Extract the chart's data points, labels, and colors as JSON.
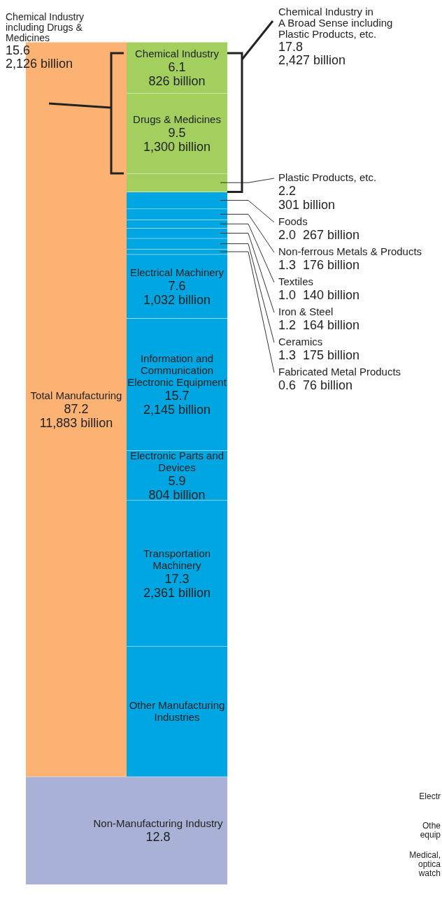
{
  "chart_data": {
    "type": "bar",
    "stacked": true,
    "categories": [
      null,
      null
    ],
    "series": [
      {
        "name": "Non-Manufacturing Industry",
        "color": "#a9b1d6",
        "values": [
          12.8,
          12.8
        ],
        "value_labels": [
          null,
          "12.8"
        ]
      },
      {
        "name": "Total Manufacturing",
        "color": "#fbb273",
        "values": [
          87.2,
          null
        ],
        "value_labels": [
          "87.2",
          null
        ]
      },
      {
        "name": "Other Manufacturing Industries",
        "color": "#00a6e2",
        "values": [
          null,
          15.5
        ],
        "value_labels": [
          null,
          null
        ]
      },
      {
        "name": "Transportation Machinery",
        "color": "#00a6e2",
        "values": [
          null,
          17.3
        ],
        "value_labels": [
          null,
          "17.3"
        ]
      },
      {
        "name": "Electronic Parts and Devices",
        "color": "#00a6e2",
        "values": [
          null,
          5.9
        ],
        "value_labels": [
          null,
          "5.9"
        ]
      },
      {
        "name": "Information and Communication Electronic Equipment",
        "color": "#00a6e2",
        "values": [
          null,
          15.7
        ],
        "value_labels": [
          null,
          "15.7"
        ]
      },
      {
        "name": "Electrical Machinery",
        "color": "#00a6e2",
        "values": [
          null,
          7.6
        ],
        "value_labels": [
          null,
          "7.6"
        ]
      },
      {
        "name": "Fabricated Metal Products",
        "color": "#00a6e2",
        "values": [
          null,
          0.6
        ],
        "value_labels": [
          null,
          "0.6"
        ]
      },
      {
        "name": "Ceramics",
        "color": "#00a6e2",
        "values": [
          null,
          1.3
        ],
        "value_labels": [
          null,
          "1.3"
        ]
      },
      {
        "name": "Iron & Steel",
        "color": "#00a6e2",
        "values": [
          null,
          1.2
        ],
        "value_labels": [
          null,
          "1.2"
        ]
      },
      {
        "name": "Textiles",
        "color": "#00a6e2",
        "values": [
          null,
          1.0
        ],
        "value_labels": [
          null,
          "1.0"
        ]
      },
      {
        "name": "Non-ferrous Metals & Products",
        "color": "#00a6e2",
        "values": [
          null,
          1.3
        ],
        "value_labels": [
          null,
          "1.3"
        ]
      },
      {
        "name": "Foods",
        "color": "#00a6e2",
        "values": [
          null,
          2.0
        ],
        "value_labels": [
          null,
          "2.0"
        ]
      },
      {
        "name": "Plastic Products, etc.",
        "color": "#a2cf5e",
        "values": [
          null,
          2.2
        ],
        "value_labels": [
          null,
          "2.2"
        ]
      },
      {
        "name": "Drugs & Medicines",
        "color": "#a2cf5e",
        "values": [
          null,
          9.5
        ],
        "value_labels": [
          null,
          "9.5"
        ]
      },
      {
        "name": "Chemical Industry",
        "color": "#a2cf5e",
        "values": [
          null,
          6.1
        ],
        "value_labels": [
          null,
          "6.1"
        ]
      }
    ],
    "annotations": [
      "826 billion",
      "1,300 billion",
      "301 billion",
      "267 billion",
      "176 billion",
      "140 billion",
      "164 billion",
      "175 billion",
      "76 billion",
      "1,032 billion",
      "2,145 billion",
      "804 billion",
      "2,361 billion",
      "11,883 billion",
      "Chemical Industry\nincluding Drugs &\nMedicines\n15.6\n2,126 billion",
      "Chemical Industry in\nA Broad Sense including\nPlastic Products, etc.\n17.8\n2,427 billion",
      "Electr",
      "Othe\nequip",
      "Medical,\noptica\nwatch"
    ]
  }
}
